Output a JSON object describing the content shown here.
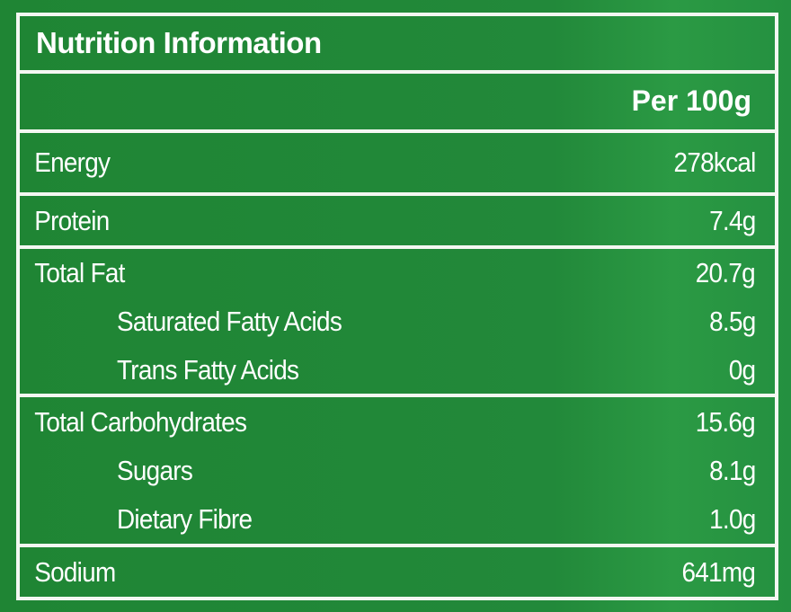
{
  "title": "Nutrition Information",
  "column_header": "Per 100g",
  "sections": [
    {
      "rows": [
        {
          "label": "Energy",
          "value": "278kcal"
        }
      ]
    },
    {
      "rows": [
        {
          "label": "Protein",
          "value": "7.4g"
        }
      ]
    },
    {
      "rows": [
        {
          "label": "Total Fat",
          "value": "20.7g"
        },
        {
          "label": "Saturated Fatty Acids",
          "value": "8.5g"
        },
        {
          "label": "Trans Fatty Acids",
          "value": "0g"
        }
      ]
    },
    {
      "rows": [
        {
          "label": "Total Carbohydrates",
          "value": "15.6g"
        },
        {
          "label": "Sugars",
          "value": "8.1g"
        },
        {
          "label": "Dietary Fibre",
          "value": "1.0g"
        }
      ]
    },
    {
      "rows": [
        {
          "label": "Sodium",
          "value": "641mg"
        }
      ]
    }
  ]
}
